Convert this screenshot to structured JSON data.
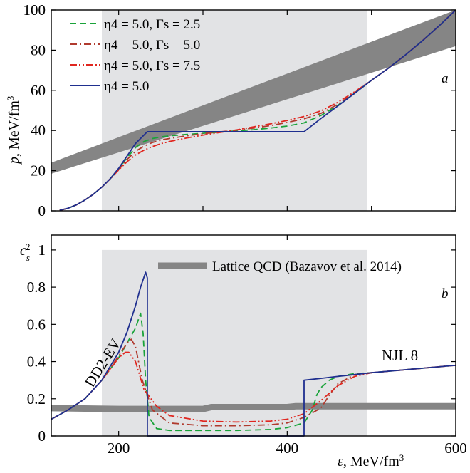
{
  "chart_data": [
    {
      "type": "line",
      "panel_letter": "a",
      "ylabel": "p, MeV/fm3",
      "xlim": [
        120,
        600
      ],
      "ylim": [
        0,
        100
      ],
      "x_ticks": [
        200,
        300,
        400,
        500,
        600
      ],
      "y_ticks": [
        0,
        20,
        40,
        60,
        80,
        100
      ],
      "y_tick_labels": [
        "0",
        "20",
        "40",
        "60",
        "80",
        "100"
      ],
      "shaded_x_range": [
        180,
        495
      ],
      "lattice_band": {
        "x": [
          120,
          600
        ],
        "y_lower": [
          18.5,
          82
        ],
        "y_upper": [
          24,
          100
        ]
      },
      "legend_position": "top-left",
      "series": [
        {
          "name": "η4 = 5.0, Γs = 2.5",
          "color": "#1aa33a",
          "dash": "9,5",
          "x": [
            130,
            140,
            150,
            160,
            170,
            180,
            190,
            200,
            210,
            220,
            230,
            240,
            250,
            260,
            280,
            300,
            320,
            340,
            360,
            380,
            400,
            420,
            440,
            460,
            480,
            500,
            520,
            540,
            560,
            580,
            600
          ],
          "y": [
            0.3,
            1.3,
            3.0,
            5.4,
            8.3,
            11.8,
            16.0,
            21.0,
            26.5,
            31.5,
            34.5,
            36.0,
            36.8,
            37.3,
            38.0,
            38.6,
            39.2,
            39.8,
            40.4,
            41.2,
            42.2,
            43.8,
            47.5,
            52.5,
            58.5,
            65.0,
            71.0,
            77.5,
            84.5,
            92.0,
            100.0
          ]
        },
        {
          "name": "η4 = 5.0, Γs = 5.0",
          "color": "#b03a2e",
          "dash": "10,4,2,4",
          "x": [
            130,
            140,
            150,
            160,
            170,
            180,
            190,
            200,
            210,
            220,
            230,
            240,
            250,
            260,
            280,
            300,
            320,
            340,
            360,
            380,
            400,
            420,
            440,
            460,
            480,
            500,
            520,
            540,
            560,
            580,
            600
          ],
          "y": [
            0.3,
            1.3,
            3.0,
            5.4,
            8.3,
            11.8,
            16.0,
            20.8,
            25.6,
            29.6,
            32.2,
            34.0,
            35.2,
            36.0,
            37.3,
            38.4,
            39.3,
            40.2,
            41.2,
            42.4,
            44.0,
            45.8,
            48.5,
            53.0,
            58.8,
            65.0,
            71.0,
            77.5,
            84.5,
            92.0,
            100.0
          ]
        },
        {
          "name": "η4 = 5.0, Γs = 7.5",
          "color": "#e0261f",
          "dash": "10,3,2,3,2,3",
          "x": [
            130,
            140,
            150,
            160,
            170,
            180,
            190,
            200,
            210,
            220,
            230,
            240,
            250,
            260,
            280,
            300,
            320,
            340,
            360,
            380,
            400,
            420,
            440,
            460,
            480,
            500,
            520,
            540,
            560,
            580,
            600
          ],
          "y": [
            0.3,
            1.3,
            3.0,
            5.4,
            8.3,
            11.8,
            15.9,
            20.4,
            24.5,
            27.8,
            30.2,
            32.0,
            33.4,
            34.5,
            36.2,
            37.7,
            39.0,
            40.3,
            41.8,
            43.3,
            45.0,
            47.0,
            49.8,
            54.0,
            59.3,
            65.0,
            71.0,
            77.5,
            84.5,
            92.0,
            100.0
          ]
        },
        {
          "name": "η4 = 5.0",
          "color": "#1f2f8f",
          "dash": "",
          "x": [
            130,
            140,
            150,
            160,
            170,
            180,
            190,
            200,
            210,
            220,
            234,
            320,
            420,
            440,
            460,
            480,
            500,
            520,
            540,
            560,
            580,
            600
          ],
          "y": [
            0.3,
            1.3,
            3.0,
            5.4,
            8.3,
            11.8,
            16.0,
            21.2,
            27.3,
            33.5,
            39.4,
            39.4,
            39.4,
            46.0,
            52.2,
            58.5,
            65.0,
            71.0,
            77.5,
            84.5,
            92.0,
            100.0
          ]
        }
      ]
    },
    {
      "type": "line",
      "panel_letter": "b",
      "xlabel": "ε, MeV/fm3",
      "ylabel": "c_s^2",
      "xlim": [
        120,
        600
      ],
      "ylim": [
        0,
        1.08
      ],
      "x_ticks": [
        200,
        400,
        600
      ],
      "x_tick_labels": [
        "200",
        "400",
        "600"
      ],
      "y_ticks": [
        0,
        0.2,
        0.4,
        0.6,
        0.8,
        1
      ],
      "y_tick_labels": [
        "0",
        "0.2",
        "0.4",
        "0.6",
        "0.8",
        "1"
      ],
      "shaded_x_range": [
        180,
        495
      ],
      "lattice_band": {
        "label": "Lattice QCD (Bazavov et al. 2014)",
        "x": [
          120,
          200,
          300,
          310,
          400,
          410,
          500,
          600
        ],
        "y": [
          0.15,
          0.145,
          0.145,
          0.155,
          0.155,
          0.16,
          0.16,
          0.16
        ]
      },
      "annotations": [
        "DD2-EV",
        "NJL 8"
      ],
      "series": [
        {
          "name": "η4 = 5.0, Γs = 2.5",
          "color": "#1aa33a",
          "dash": "9,5",
          "x": [
            120,
            140,
            160,
            180,
            200,
            210,
            220,
            226,
            229,
            232,
            236,
            245,
            260,
            300,
            340,
            380,
            400,
            420,
            430,
            435,
            440,
            445,
            450,
            460,
            480,
            500,
            550,
            600
          ],
          "y": [
            0.09,
            0.14,
            0.2,
            0.3,
            0.42,
            0.5,
            0.58,
            0.66,
            0.55,
            0.3,
            0.1,
            0.04,
            0.03,
            0.03,
            0.03,
            0.035,
            0.045,
            0.07,
            0.14,
            0.22,
            0.26,
            0.28,
            0.3,
            0.32,
            0.335,
            0.34,
            0.36,
            0.38
          ]
        },
        {
          "name": "η4 = 5.0, Γs = 5.0",
          "color": "#b03a2e",
          "dash": "10,4,2,4",
          "x": [
            120,
            140,
            160,
            180,
            200,
            210,
            215,
            220,
            228,
            240,
            260,
            300,
            340,
            380,
            400,
            420,
            440,
            450,
            460,
            480,
            500,
            550,
            600
          ],
          "y": [
            0.09,
            0.14,
            0.2,
            0.3,
            0.43,
            0.5,
            0.52,
            0.48,
            0.3,
            0.14,
            0.07,
            0.055,
            0.055,
            0.06,
            0.07,
            0.1,
            0.15,
            0.22,
            0.28,
            0.33,
            0.34,
            0.36,
            0.38
          ]
        },
        {
          "name": "η4 = 5.0, Γs = 7.5",
          "color": "#e0261f",
          "dash": "10,3,2,3,2,3",
          "x": [
            120,
            140,
            160,
            180,
            200,
            208,
            212,
            220,
            230,
            245,
            260,
            300,
            340,
            380,
            400,
            420,
            440,
            460,
            480,
            500,
            550,
            600
          ],
          "y": [
            0.09,
            0.14,
            0.2,
            0.3,
            0.42,
            0.45,
            0.45,
            0.4,
            0.25,
            0.16,
            0.11,
            0.08,
            0.075,
            0.08,
            0.09,
            0.12,
            0.19,
            0.27,
            0.32,
            0.34,
            0.36,
            0.38
          ]
        },
        {
          "name": "η4 = 5.0",
          "color": "#1f2f8f",
          "dash": "",
          "x": [
            120,
            140,
            160,
            180,
            200,
            210,
            220,
            226,
            232,
            234,
            234,
            420,
            420,
            440,
            460,
            480,
            500,
            550,
            600
          ],
          "y": [
            0.09,
            0.14,
            0.2,
            0.3,
            0.45,
            0.56,
            0.7,
            0.8,
            0.88,
            0.85,
            0.0,
            0.0,
            0.3,
            0.31,
            0.32,
            0.33,
            0.34,
            0.36,
            0.38
          ]
        }
      ]
    }
  ]
}
